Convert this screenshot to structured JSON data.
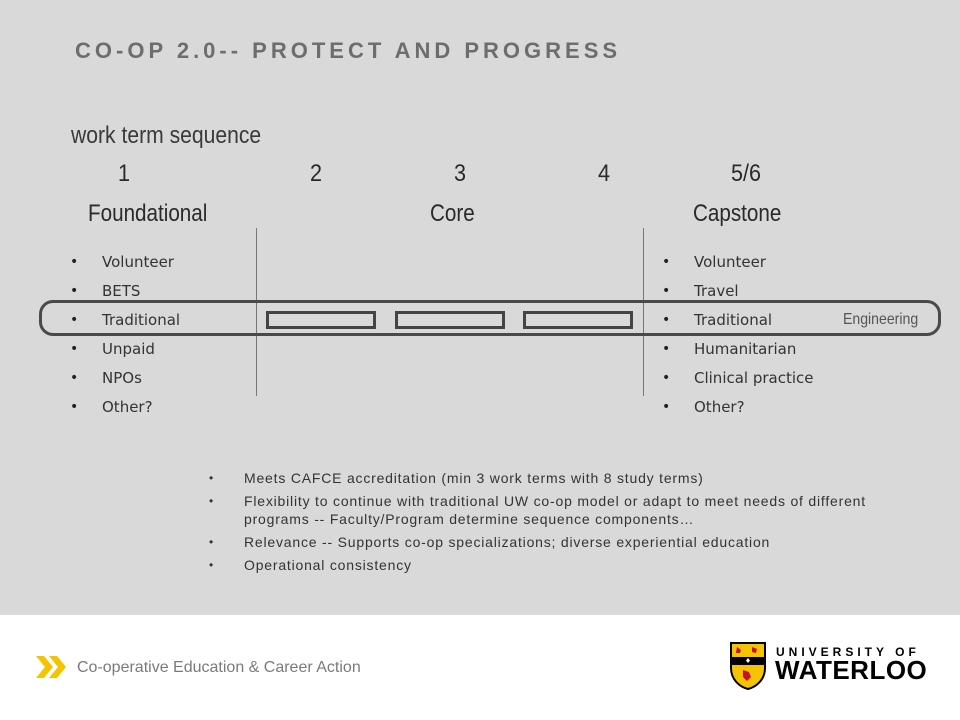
{
  "title": "CO-OP 2.0-- PROTECT AND PROGRESS",
  "sequence_label": "work term sequence",
  "terms": [
    "1",
    "2",
    "3",
    "4",
    "5/6"
  ],
  "phases": {
    "foundational": "Foundational",
    "core": "Core",
    "capstone": "Capstone"
  },
  "foundational_options": [
    "Volunteer",
    "BETS",
    "Traditional",
    "Unpaid",
    "NPOs",
    "Other?"
  ],
  "capstone_options": [
    "Volunteer",
    "Travel",
    "Traditional",
    "Humanitarian",
    "Clinical practice",
    "Other?"
  ],
  "highlight_label": "Engineering",
  "notes": [
    "Meets CAFCE accreditation (min 3 work terms with 8 study terms)",
    "Flexibility to continue with traditional UW co-op model or adapt to meet needs of different programs -- Faculty/Program  determine sequence components…",
    "Relevance -- Supports co-op specializations; diverse experiential education",
    "Operational  consistency"
  ],
  "footer": {
    "department": "Co-operative Education & Career Action",
    "university_line1": "UNIVERSITY OF",
    "university_line2": "WATERLOO"
  },
  "colors": {
    "background": "#d9d9d9",
    "accent_yellow": "#f5c400",
    "logo_red": "#c8102e"
  },
  "icons": [
    "double-chevron-icon",
    "university-crest-icon"
  ]
}
